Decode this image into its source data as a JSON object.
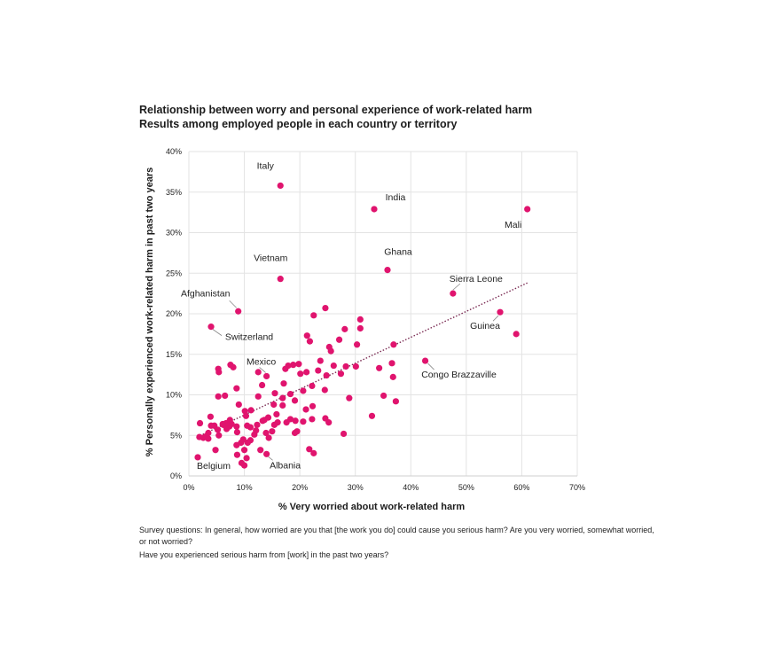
{
  "title": "Relationship between worry and personal experience of work-related harm",
  "subtitle": "Results among employed people in each country or territory",
  "footnote1": "Survey questions: In general, how worried are you that [the work you do] could cause you serious harm? Are you very worried, somewhat worried, or not worried?",
  "footnote2": "Have you experienced serious harm from [work] in the past two years?",
  "colors": {
    "point": "#e0146e",
    "trend": "#7a2a52",
    "grid": "#e3e3e3",
    "label_line": "#888888"
  },
  "chart_data": {
    "type": "scatter",
    "xlabel": "% Very worried about work-related harm",
    "ylabel": "% Personally experienced work-related harm in past two years",
    "xlim": [
      0,
      70
    ],
    "ylim": [
      0,
      40
    ],
    "x_ticks": [
      "0%",
      "10%",
      "20%",
      "30%",
      "40%",
      "50%",
      "60%",
      "70%"
    ],
    "y_ticks": [
      "0%",
      "5%",
      "10%",
      "15%",
      "20%",
      "25%",
      "30%",
      "35%",
      "40%"
    ],
    "grid": true,
    "trendline": {
      "x": [
        1.5,
        61
      ],
      "y": [
        4.8,
        23.8
      ]
    },
    "labeled_points": [
      {
        "name": "Italy",
        "x": 16.5,
        "y": 35.8
      },
      {
        "name": "India",
        "x": 33.4,
        "y": 32.9
      },
      {
        "name": "Mali",
        "x": 61.0,
        "y": 32.9
      },
      {
        "name": "Ghana",
        "x": 35.8,
        "y": 25.4
      },
      {
        "name": "Vietnam",
        "x": 16.5,
        "y": 24.3
      },
      {
        "name": "Sierra Leone",
        "x": 47.6,
        "y": 22.5
      },
      {
        "name": "Afghanistan",
        "x": 8.9,
        "y": 20.3
      },
      {
        "name": "Guinea",
        "x": 56.1,
        "y": 20.2
      },
      {
        "name": "Switzerland",
        "x": 4.0,
        "y": 18.4
      },
      {
        "name": "Mexico",
        "x": 14.0,
        "y": 12.3
      },
      {
        "name": "Congo Brazzaville",
        "x": 42.6,
        "y": 14.2
      },
      {
        "name": "Belgium",
        "x": 1.6,
        "y": 2.3
      },
      {
        "name": "Albania",
        "x": 14.0,
        "y": 2.7
      }
    ],
    "points": [
      [
        59.0,
        17.5
      ],
      [
        37.3,
        9.2
      ],
      [
        35.1,
        9.9
      ],
      [
        33.0,
        7.4
      ],
      [
        36.8,
        12.2
      ],
      [
        36.6,
        13.9
      ],
      [
        34.3,
        13.3
      ],
      [
        36.9,
        16.2
      ],
      [
        30.9,
        19.3
      ],
      [
        30.9,
        18.2
      ],
      [
        30.3,
        16.2
      ],
      [
        28.1,
        18.1
      ],
      [
        27.1,
        16.8
      ],
      [
        24.6,
        20.7
      ],
      [
        22.5,
        19.8
      ],
      [
        21.3,
        17.3
      ],
      [
        21.8,
        16.6
      ],
      [
        23.7,
        14.2
      ],
      [
        23.3,
        13.0
      ],
      [
        25.3,
        15.9
      ],
      [
        25.6,
        15.4
      ],
      [
        28.3,
        13.5
      ],
      [
        27.4,
        12.6
      ],
      [
        30.1,
        13.5
      ],
      [
        28.9,
        9.6
      ],
      [
        24.5,
        10.6
      ],
      [
        22.2,
        11.1
      ],
      [
        21.2,
        12.8
      ],
      [
        20.1,
        12.6
      ],
      [
        19.8,
        13.8
      ],
      [
        17.9,
        13.6
      ],
      [
        17.4,
        13.2
      ],
      [
        20.6,
        10.5
      ],
      [
        19.1,
        9.3
      ],
      [
        18.3,
        10.1
      ],
      [
        16.9,
        9.6
      ],
      [
        15.5,
        10.2
      ],
      [
        15.3,
        8.8
      ],
      [
        16.9,
        8.7
      ],
      [
        15.8,
        7.6
      ],
      [
        14.3,
        7.2
      ],
      [
        13.3,
        6.8
      ],
      [
        15.4,
        6.3
      ],
      [
        17.6,
        6.6
      ],
      [
        19.2,
        6.8
      ],
      [
        21.1,
        8.2
      ],
      [
        22.2,
        7.0
      ],
      [
        24.6,
        7.1
      ],
      [
        25.2,
        6.6
      ],
      [
        27.9,
        5.2
      ],
      [
        19.5,
        5.5
      ],
      [
        19.1,
        5.3
      ],
      [
        21.7,
        3.3
      ],
      [
        22.5,
        2.8
      ],
      [
        24.8,
        12.4
      ],
      [
        12.5,
        12.8
      ],
      [
        13.2,
        11.2
      ],
      [
        12.5,
        9.8
      ],
      [
        11.2,
        8.1
      ],
      [
        10.3,
        7.4
      ],
      [
        9.0,
        8.8
      ],
      [
        10.1,
        8.0
      ],
      [
        12.3,
        6.3
      ],
      [
        12.1,
        5.6
      ],
      [
        11.8,
        5.1
      ],
      [
        10.5,
        6.2
      ],
      [
        11.1,
        6.0
      ],
      [
        13.9,
        5.3
      ],
      [
        14.4,
        4.7
      ],
      [
        15.0,
        5.5
      ],
      [
        12.9,
        3.2
      ],
      [
        11.1,
        4.4
      ],
      [
        10.6,
        4.1
      ],
      [
        9.8,
        4.5
      ],
      [
        9.4,
        4.1
      ],
      [
        8.6,
        3.8
      ],
      [
        10.0,
        3.2
      ],
      [
        10.4,
        2.2
      ],
      [
        9.5,
        1.6
      ],
      [
        10.0,
        1.3
      ],
      [
        8.7,
        2.6
      ],
      [
        8.7,
        5.4
      ],
      [
        8.6,
        6.1
      ],
      [
        7.7,
        6.4
      ],
      [
        7.3,
        6.1
      ],
      [
        6.7,
        6.5
      ],
      [
        6.2,
        6.3
      ],
      [
        6.8,
        5.8
      ],
      [
        5.4,
        5.0
      ],
      [
        5.2,
        5.7
      ],
      [
        4.6,
        6.2
      ],
      [
        4.0,
        6.2
      ],
      [
        3.9,
        7.3
      ],
      [
        3.5,
        5.3
      ],
      [
        3.1,
        4.9
      ],
      [
        3.5,
        4.6
      ],
      [
        2.6,
        4.7
      ],
      [
        1.9,
        4.8
      ],
      [
        2.0,
        6.5
      ],
      [
        4.8,
        3.2
      ],
      [
        5.3,
        9.8
      ],
      [
        6.5,
        9.9
      ],
      [
        5.3,
        13.2
      ],
      [
        5.4,
        12.8
      ],
      [
        7.5,
        13.7
      ],
      [
        8.0,
        13.4
      ],
      [
        8.6,
        10.8
      ],
      [
        7.4,
        6.9
      ],
      [
        6.1,
        6.4
      ],
      [
        13.6,
        6.9
      ],
      [
        16.0,
        6.6
      ],
      [
        18.3,
        7.0
      ],
      [
        20.6,
        6.7
      ],
      [
        22.3,
        8.6
      ],
      [
        17.1,
        11.4
      ],
      [
        18.8,
        13.7
      ],
      [
        26.1,
        13.6
      ]
    ]
  }
}
